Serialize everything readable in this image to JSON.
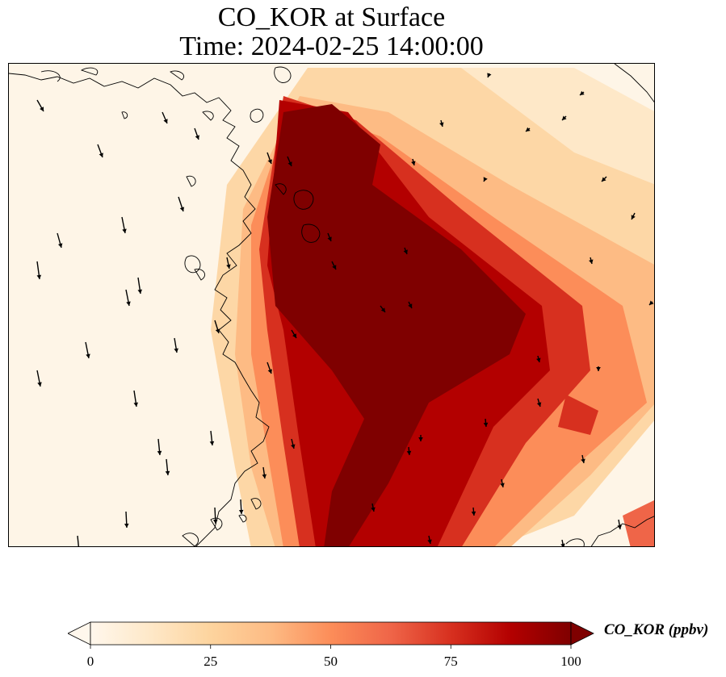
{
  "title": {
    "line1": "CO_KOR at Surface",
    "line2": "Time: 2024-02-25 14:00:00"
  },
  "colorbar": {
    "label": "CO_KOR (ppbv)",
    "ticks": [
      "0",
      "25",
      "50",
      "75",
      "100"
    ],
    "min": 0,
    "max": 100,
    "extend": "both",
    "colormap": "OrRd",
    "stops": [
      {
        "value": 0,
        "color": "#fff7ec"
      },
      {
        "value": 12.5,
        "color": "#fee8c8"
      },
      {
        "value": 25,
        "color": "#fdd49e"
      },
      {
        "value": 37.5,
        "color": "#fdbb84"
      },
      {
        "value": 50,
        "color": "#fc8d59"
      },
      {
        "value": 62.5,
        "color": "#ef6548"
      },
      {
        "value": 75,
        "color": "#d7301f"
      },
      {
        "value": 87.5,
        "color": "#b30000"
      },
      {
        "value": 100,
        "color": "#7f0000"
      }
    ]
  },
  "map": {
    "field": "CO_KOR",
    "level": "Surface",
    "features": [
      "coastlines",
      "wind vectors",
      "filled concentration field"
    ]
  }
}
